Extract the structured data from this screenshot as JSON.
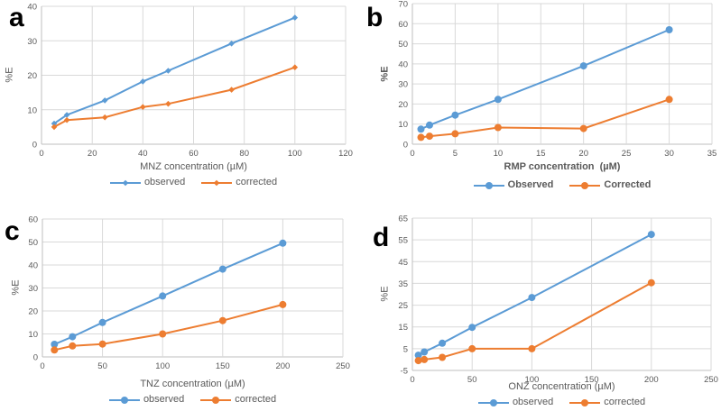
{
  "colors": {
    "observed": "#5B9BD5",
    "corrected": "#ED7D31",
    "grid": "#D9D9D9",
    "axis": "#BFBFBF",
    "text": "#595959",
    "panel_letter": "#000000",
    "background": "#FFFFFF"
  },
  "chart_data": [
    {
      "panel": "a",
      "type": "line",
      "title": "",
      "xlabel": "MNZ concentration (µM)",
      "ylabel": "%E",
      "xlim": [
        0,
        120
      ],
      "ylim": [
        0,
        40
      ],
      "xticks": [
        0,
        20,
        40,
        60,
        80,
        100,
        120
      ],
      "yticks": [
        0,
        10,
        20,
        30,
        40
      ],
      "grid": true,
      "legend_position": "bottom",
      "marker": "diamond",
      "legend": [
        "observed",
        "corrected"
      ],
      "series": [
        {
          "name": "observed",
          "color": "#5B9BD5",
          "x": [
            5,
            10,
            25,
            40,
            50,
            75,
            100
          ],
          "y": [
            6,
            8.5,
            12.7,
            18.2,
            21.3,
            29.2,
            36.7
          ]
        },
        {
          "name": "corrected",
          "color": "#ED7D31",
          "x": [
            5,
            10,
            25,
            40,
            50,
            75,
            100
          ],
          "y": [
            5,
            7,
            7.8,
            10.8,
            11.7,
            15.8,
            22.3
          ]
        }
      ]
    },
    {
      "panel": "b",
      "type": "line",
      "title": "",
      "xlabel": "RMP concentration  (µM)",
      "ylabel": "%E",
      "xlim": [
        0,
        35
      ],
      "ylim": [
        0,
        70
      ],
      "xticks": [
        0,
        5,
        10,
        15,
        20,
        25,
        30,
        35
      ],
      "yticks": [
        0,
        10,
        20,
        30,
        40,
        50,
        60,
        70
      ],
      "grid": true,
      "legend_position": "bottom",
      "marker": "circle",
      "legend": [
        "Observed",
        "Corrected"
      ],
      "series": [
        {
          "name": "Observed",
          "color": "#5B9BD5",
          "x": [
            1,
            2,
            5,
            10,
            20,
            30
          ],
          "y": [
            7.5,
            9.5,
            14.5,
            22.3,
            39,
            57
          ]
        },
        {
          "name": "Corrected",
          "color": "#ED7D31",
          "x": [
            1,
            2,
            5,
            10,
            20,
            30
          ],
          "y": [
            3.4,
            4,
            5.2,
            8.3,
            7.8,
            22.3
          ]
        }
      ]
    },
    {
      "panel": "c",
      "type": "line",
      "title": "",
      "xlabel": "TNZ concentration (µM)",
      "ylabel": "%E",
      "xlim": [
        0,
        250
      ],
      "ylim": [
        0,
        60
      ],
      "xticks": [
        0,
        50,
        100,
        150,
        200,
        250
      ],
      "yticks": [
        0,
        10,
        20,
        30,
        40,
        50,
        60
      ],
      "grid": true,
      "legend_position": "bottom",
      "marker": "circle",
      "legend": [
        "observed",
        "corrected"
      ],
      "series": [
        {
          "name": "observed",
          "color": "#5B9BD5",
          "x": [
            10,
            25,
            50,
            100,
            150,
            200
          ],
          "y": [
            5.5,
            8.8,
            15,
            26.5,
            38.2,
            49.5
          ]
        },
        {
          "name": "corrected",
          "color": "#ED7D31",
          "x": [
            10,
            25,
            50,
            100,
            150,
            200
          ],
          "y": [
            3,
            4.8,
            5.6,
            10,
            15.8,
            22.8
          ]
        }
      ]
    },
    {
      "panel": "d",
      "type": "line",
      "title": "",
      "xlabel": "ONZ concentration (µM)",
      "ylabel": "%E",
      "xlim": [
        0,
        250
      ],
      "ylim": [
        -5,
        65
      ],
      "xticks": [
        0,
        50,
        100,
        150,
        200,
        250
      ],
      "yticks": [
        -5,
        5,
        15,
        25,
        35,
        45,
        55,
        65
      ],
      "grid": true,
      "legend_position": "bottom",
      "marker": "circle",
      "legend": [
        "observed",
        "corrected"
      ],
      "series": [
        {
          "name": "observed",
          "color": "#5B9BD5",
          "x": [
            5,
            10,
            25,
            50,
            100,
            200
          ],
          "y": [
            2,
            3.5,
            7.5,
            14.8,
            28.5,
            57.5
          ]
        },
        {
          "name": "corrected",
          "color": "#ED7D31",
          "x": [
            5,
            10,
            25,
            50,
            100,
            200
          ],
          "y": [
            -0.5,
            0,
            1,
            5,
            5,
            35.3
          ]
        }
      ]
    }
  ]
}
